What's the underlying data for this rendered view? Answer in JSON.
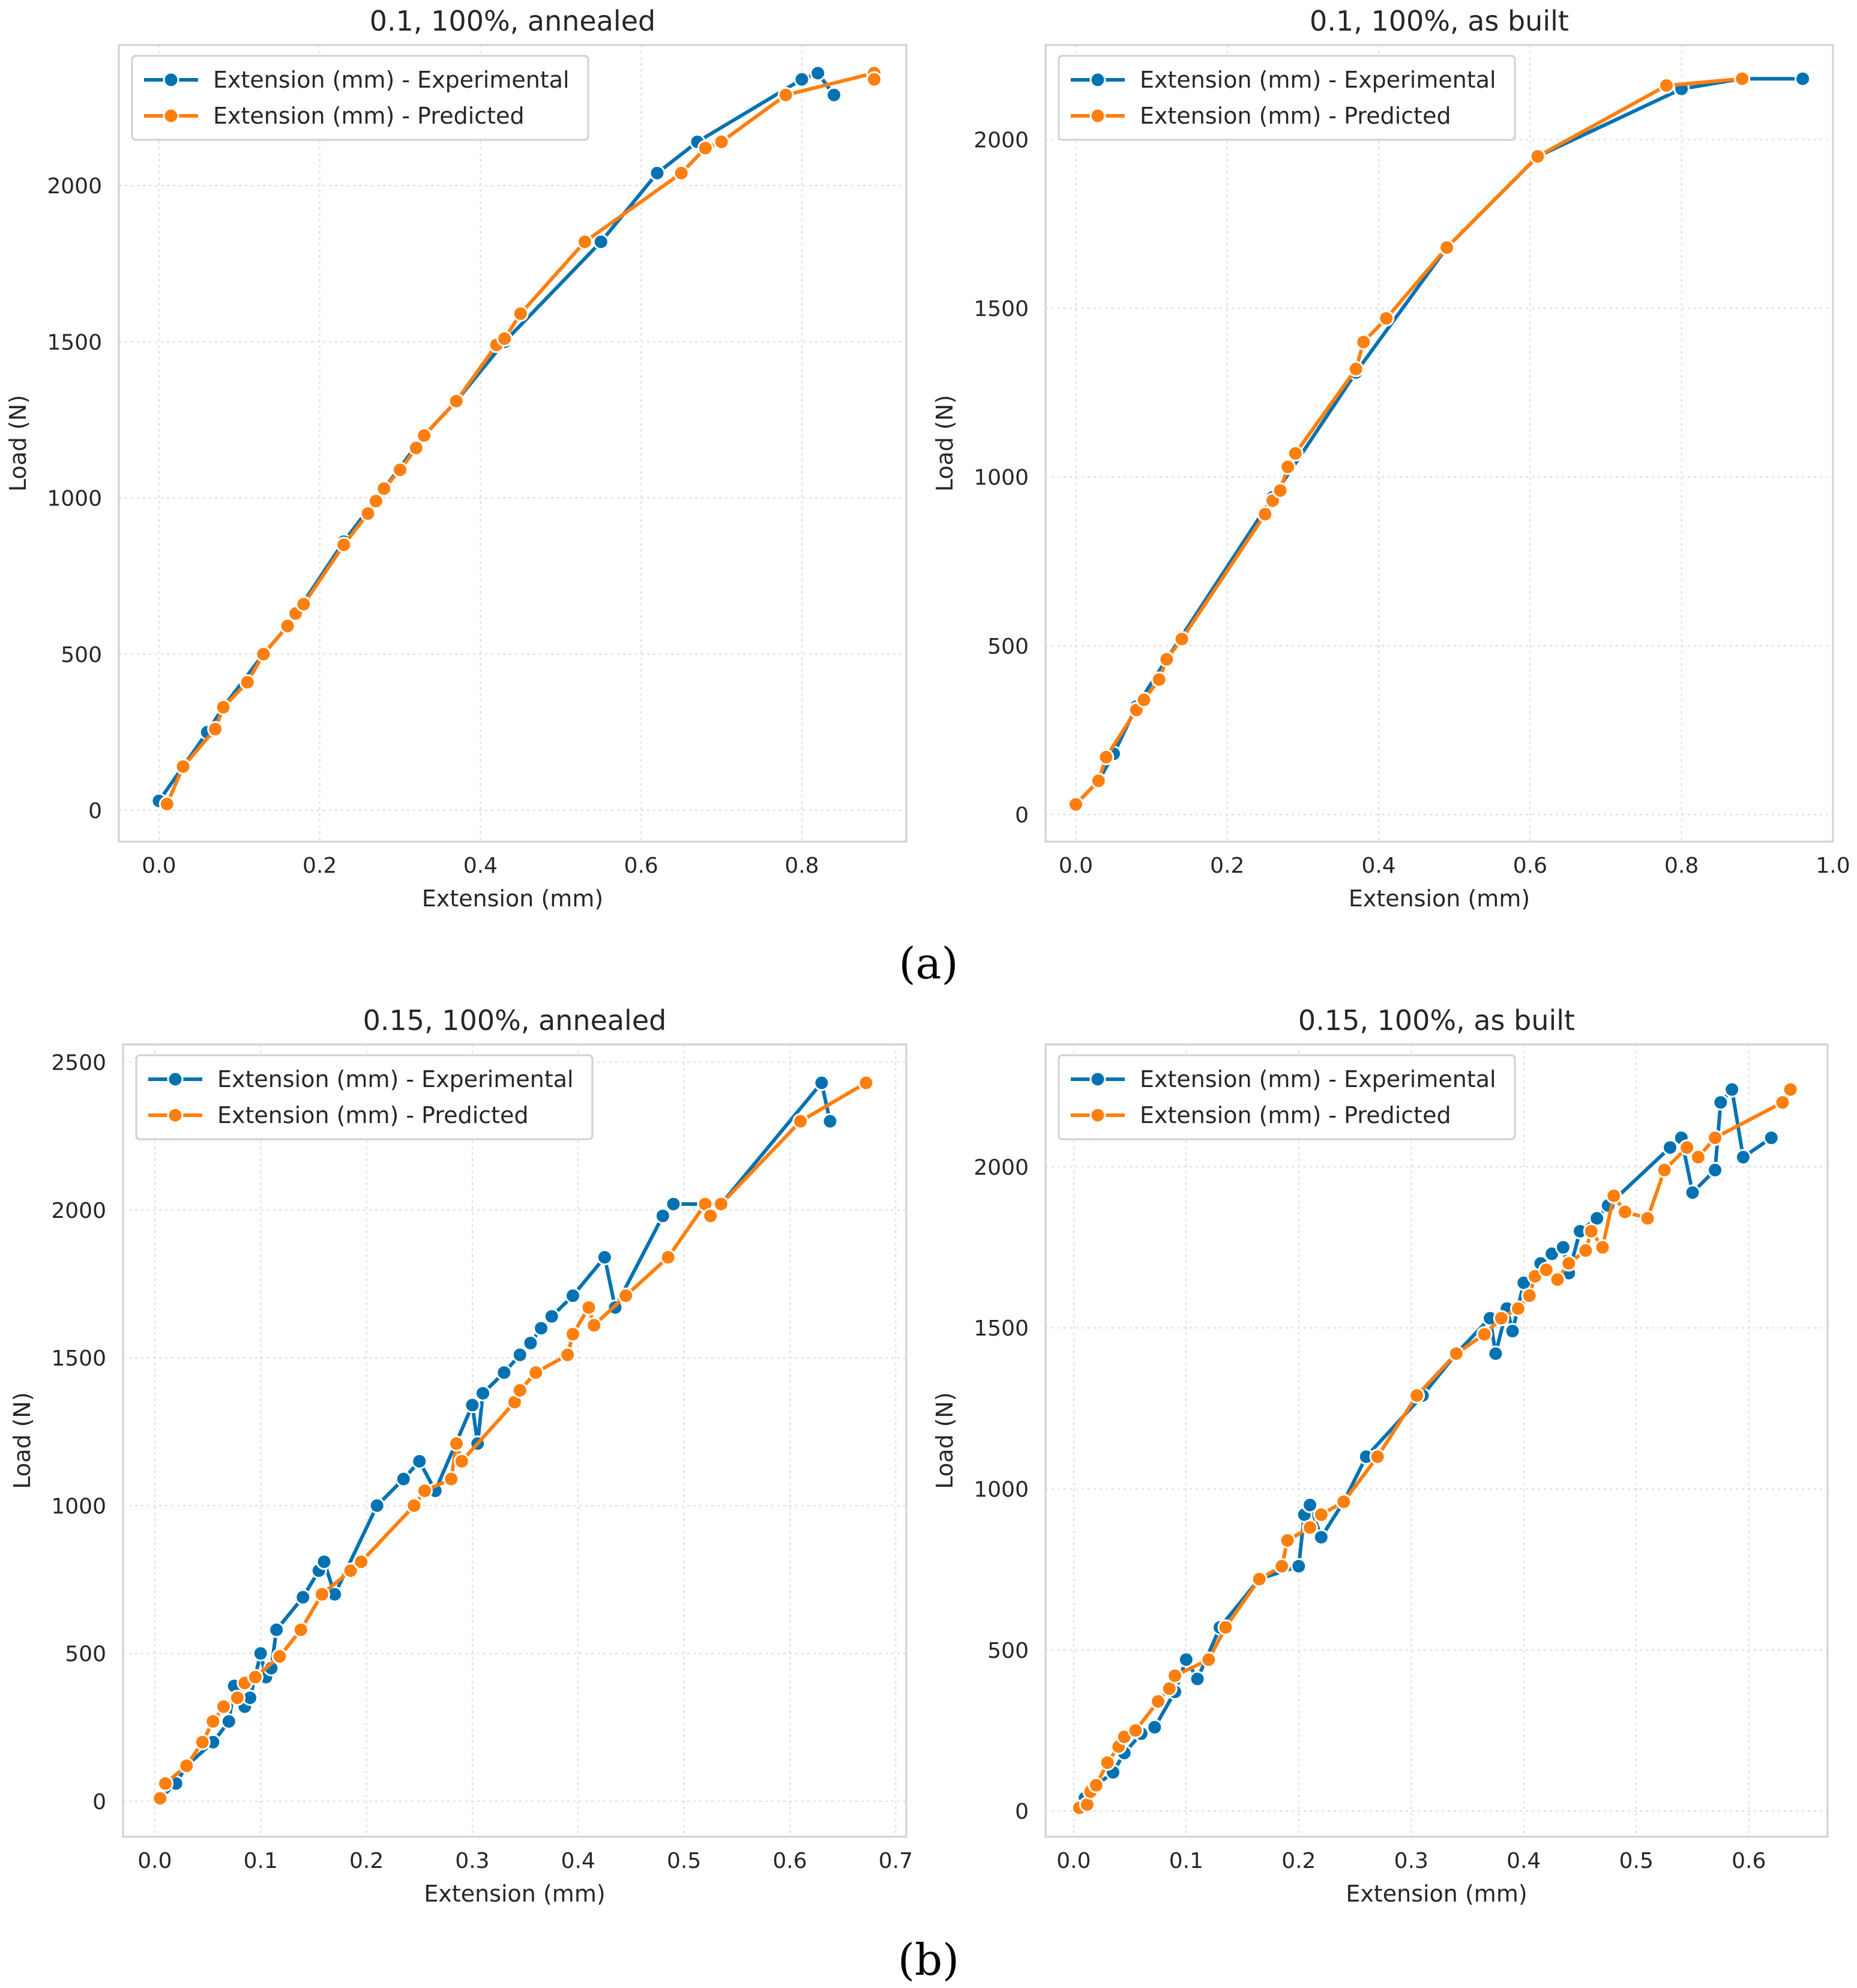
{
  "figure": {
    "panel_labels": [
      "(a)",
      "(b)"
    ],
    "colors": {
      "experimental": "#0072b2",
      "predicted": "#ff7f0e",
      "grid": "#dcdcdc",
      "frame": "#d0d0d0"
    }
  },
  "chart_data": [
    {
      "type": "line",
      "title": "0.1, 100%, annealed",
      "xlabel": "Extension (mm)",
      "ylabel": "Load (N)",
      "xlim": [
        -0.05,
        0.93
      ],
      "ylim": [
        -100,
        2450
      ],
      "xticks": [
        0.0,
        0.2,
        0.4,
        0.6,
        0.8
      ],
      "xtick_labels": [
        "0.0",
        "0.2",
        "0.4",
        "0.6",
        "0.8"
      ],
      "yticks": [
        0,
        500,
        1000,
        1500,
        2000
      ],
      "ytick_labels": [
        "0",
        "500",
        "1000",
        "1500",
        "2000"
      ],
      "grid": true,
      "legend": "upper-left",
      "series": [
        {
          "name": "Extension (mm) - Experimental",
          "x": [
            0.0,
            0.06,
            0.08,
            0.13,
            0.16,
            0.23,
            0.28,
            0.33,
            0.37,
            0.43,
            0.55,
            0.62,
            0.67,
            0.8,
            0.82,
            0.84
          ],
          "y": [
            30,
            250,
            330,
            500,
            590,
            860,
            1030,
            1200,
            1310,
            1500,
            1820,
            2040,
            2140,
            2340,
            2360,
            2290
          ]
        },
        {
          "name": "Extension (mm) - Predicted",
          "x": [
            0.01,
            0.03,
            0.07,
            0.08,
            0.11,
            0.13,
            0.16,
            0.17,
            0.18,
            0.23,
            0.26,
            0.27,
            0.28,
            0.3,
            0.32,
            0.33,
            0.37,
            0.42,
            0.43,
            0.45,
            0.53,
            0.65,
            0.68,
            0.7,
            0.78,
            0.89,
            0.89
          ],
          "y": [
            20,
            140,
            260,
            330,
            410,
            500,
            590,
            630,
            660,
            850,
            950,
            990,
            1030,
            1090,
            1160,
            1200,
            1310,
            1490,
            1510,
            1590,
            1820,
            2040,
            2120,
            2140,
            2290,
            2360,
            2340
          ]
        }
      ]
    },
    {
      "type": "line",
      "title": "0.1, 100%, as built",
      "xlabel": "Extension (mm)",
      "ylabel": "Load (N)",
      "xlim": [
        -0.04,
        1.0
      ],
      "ylim": [
        -80,
        2280
      ],
      "xticks": [
        0.0,
        0.2,
        0.4,
        0.6,
        0.8,
        1.0
      ],
      "xtick_labels": [
        "0.0",
        "0.2",
        "0.4",
        "0.6",
        "0.8",
        "1.0"
      ],
      "yticks": [
        0,
        500,
        1000,
        1500,
        2000
      ],
      "ytick_labels": [
        "0",
        "500",
        "1000",
        "1500",
        "2000"
      ],
      "grid": true,
      "legend": "upper-left",
      "series": [
        {
          "name": "Extension (mm) - Experimental",
          "x": [
            0.0,
            0.03,
            0.05,
            0.08,
            0.12,
            0.26,
            0.37,
            0.49,
            0.61,
            0.8,
            0.88,
            0.96
          ],
          "y": [
            30,
            100,
            180,
            320,
            460,
            940,
            1310,
            1680,
            1950,
            2150,
            2180,
            2180
          ]
        },
        {
          "name": "Extension (mm) - Predicted",
          "x": [
            0.0,
            0.03,
            0.04,
            0.08,
            0.09,
            0.11,
            0.12,
            0.14,
            0.25,
            0.26,
            0.27,
            0.28,
            0.29,
            0.37,
            0.38,
            0.41,
            0.49,
            0.61,
            0.78,
            0.88
          ],
          "y": [
            30,
            100,
            170,
            310,
            340,
            400,
            460,
            520,
            890,
            930,
            960,
            1030,
            1070,
            1320,
            1400,
            1470,
            1680,
            1950,
            2160,
            2180
          ]
        }
      ]
    },
    {
      "type": "line",
      "title": "0.15, 100%, annealed",
      "xlabel": "Extension (mm)",
      "ylabel": "Load (N)",
      "xlim": [
        -0.03,
        0.71
      ],
      "ylim": [
        -120,
        2560
      ],
      "xticks": [
        0.0,
        0.1,
        0.2,
        0.3,
        0.4,
        0.5,
        0.6,
        0.7
      ],
      "xtick_labels": [
        "0.0",
        "0.1",
        "0.2",
        "0.3",
        "0.4",
        "0.5",
        "0.6",
        "0.7"
      ],
      "yticks": [
        0,
        500,
        1000,
        1500,
        2000,
        2500
      ],
      "ytick_labels": [
        "0",
        "500",
        "1000",
        "1500",
        "2000",
        "2500"
      ],
      "grid": true,
      "legend": "upper-left",
      "series": [
        {
          "name": "Extension (mm) - Experimental",
          "x": [
            0.005,
            0.02,
            0.03,
            0.055,
            0.07,
            0.075,
            0.085,
            0.09,
            0.1,
            0.105,
            0.11,
            0.115,
            0.14,
            0.155,
            0.16,
            0.17,
            0.21,
            0.235,
            0.25,
            0.265,
            0.3,
            0.305,
            0.31,
            0.33,
            0.345,
            0.355,
            0.365,
            0.375,
            0.395,
            0.425,
            0.435,
            0.48,
            0.49,
            0.535,
            0.63,
            0.638
          ],
          "y": [
            10,
            60,
            120,
            200,
            270,
            390,
            320,
            350,
            500,
            420,
            450,
            580,
            690,
            780,
            810,
            700,
            1000,
            1090,
            1150,
            1050,
            1340,
            1210,
            1380,
            1450,
            1510,
            1550,
            1600,
            1640,
            1710,
            1840,
            1670,
            1980,
            2020,
            2020,
            2430,
            2300
          ]
        },
        {
          "name": "Extension (mm) - Predicted",
          "x": [
            0.005,
            0.01,
            0.03,
            0.045,
            0.055,
            0.065,
            0.078,
            0.085,
            0.095,
            0.118,
            0.138,
            0.158,
            0.185,
            0.195,
            0.245,
            0.255,
            0.28,
            0.285,
            0.29,
            0.34,
            0.345,
            0.36,
            0.39,
            0.395,
            0.41,
            0.415,
            0.445,
            0.485,
            0.52,
            0.525,
            0.535,
            0.61,
            0.672
          ],
          "y": [
            10,
            60,
            120,
            200,
            270,
            320,
            350,
            400,
            420,
            490,
            580,
            700,
            780,
            810,
            1000,
            1050,
            1090,
            1210,
            1150,
            1350,
            1390,
            1450,
            1510,
            1580,
            1670,
            1610,
            1710,
            1840,
            2020,
            1980,
            2020,
            2300,
            2430
          ]
        }
      ]
    },
    {
      "type": "line",
      "title": "0.15, 100%, as built",
      "xlabel": "Extension (mm)",
      "ylabel": "Load (N)",
      "xlim": [
        -0.025,
        0.67
      ],
      "ylim": [
        -80,
        2380
      ],
      "xticks": [
        0.0,
        0.1,
        0.2,
        0.3,
        0.4,
        0.5,
        0.6
      ],
      "xtick_labels": [
        "0.0",
        "0.1",
        "0.2",
        "0.3",
        "0.4",
        "0.5",
        "0.6"
      ],
      "yticks": [
        0,
        500,
        1000,
        1500,
        2000
      ],
      "ytick_labels": [
        "0",
        "500",
        "1000",
        "1500",
        "2000"
      ],
      "grid": true,
      "legend": "upper-left",
      "series": [
        {
          "name": "Extension (mm) - Experimental",
          "x": [
            0.005,
            0.01,
            0.012,
            0.02,
            0.035,
            0.045,
            0.06,
            0.072,
            0.09,
            0.1,
            0.11,
            0.13,
            0.165,
            0.2,
            0.205,
            0.21,
            0.22,
            0.24,
            0.26,
            0.31,
            0.34,
            0.37,
            0.375,
            0.385,
            0.39,
            0.4,
            0.41,
            0.415,
            0.425,
            0.435,
            0.44,
            0.45,
            0.465,
            0.475,
            0.53,
            0.54,
            0.55,
            0.57,
            0.575,
            0.585,
            0.595,
            0.62
          ],
          "y": [
            10,
            40,
            20,
            80,
            120,
            180,
            240,
            260,
            370,
            470,
            410,
            570,
            720,
            760,
            920,
            950,
            850,
            960,
            1100,
            1290,
            1420,
            1530,
            1420,
            1560,
            1490,
            1640,
            1660,
            1700,
            1730,
            1750,
            1670,
            1800,
            1840,
            1880,
            2060,
            2090,
            1920,
            1990,
            2200,
            2240,
            2030,
            2090
          ]
        },
        {
          "name": "Extension (mm) - Predicted",
          "x": [
            0.005,
            0.012,
            0.015,
            0.02,
            0.03,
            0.04,
            0.045,
            0.055,
            0.075,
            0.085,
            0.09,
            0.12,
            0.135,
            0.165,
            0.185,
            0.19,
            0.21,
            0.22,
            0.24,
            0.27,
            0.305,
            0.34,
            0.365,
            0.38,
            0.395,
            0.405,
            0.41,
            0.42,
            0.43,
            0.44,
            0.455,
            0.46,
            0.47,
            0.48,
            0.49,
            0.51,
            0.525,
            0.545,
            0.555,
            0.57,
            0.63,
            0.637
          ],
          "y": [
            10,
            20,
            60,
            80,
            150,
            200,
            230,
            250,
            340,
            380,
            420,
            470,
            570,
            720,
            760,
            840,
            880,
            920,
            960,
            1100,
            1290,
            1420,
            1480,
            1530,
            1560,
            1600,
            1660,
            1680,
            1650,
            1700,
            1740,
            1800,
            1750,
            1910,
            1860,
            1840,
            1990,
            2060,
            2030,
            2090,
            2200,
            2240
          ]
        }
      ]
    }
  ]
}
